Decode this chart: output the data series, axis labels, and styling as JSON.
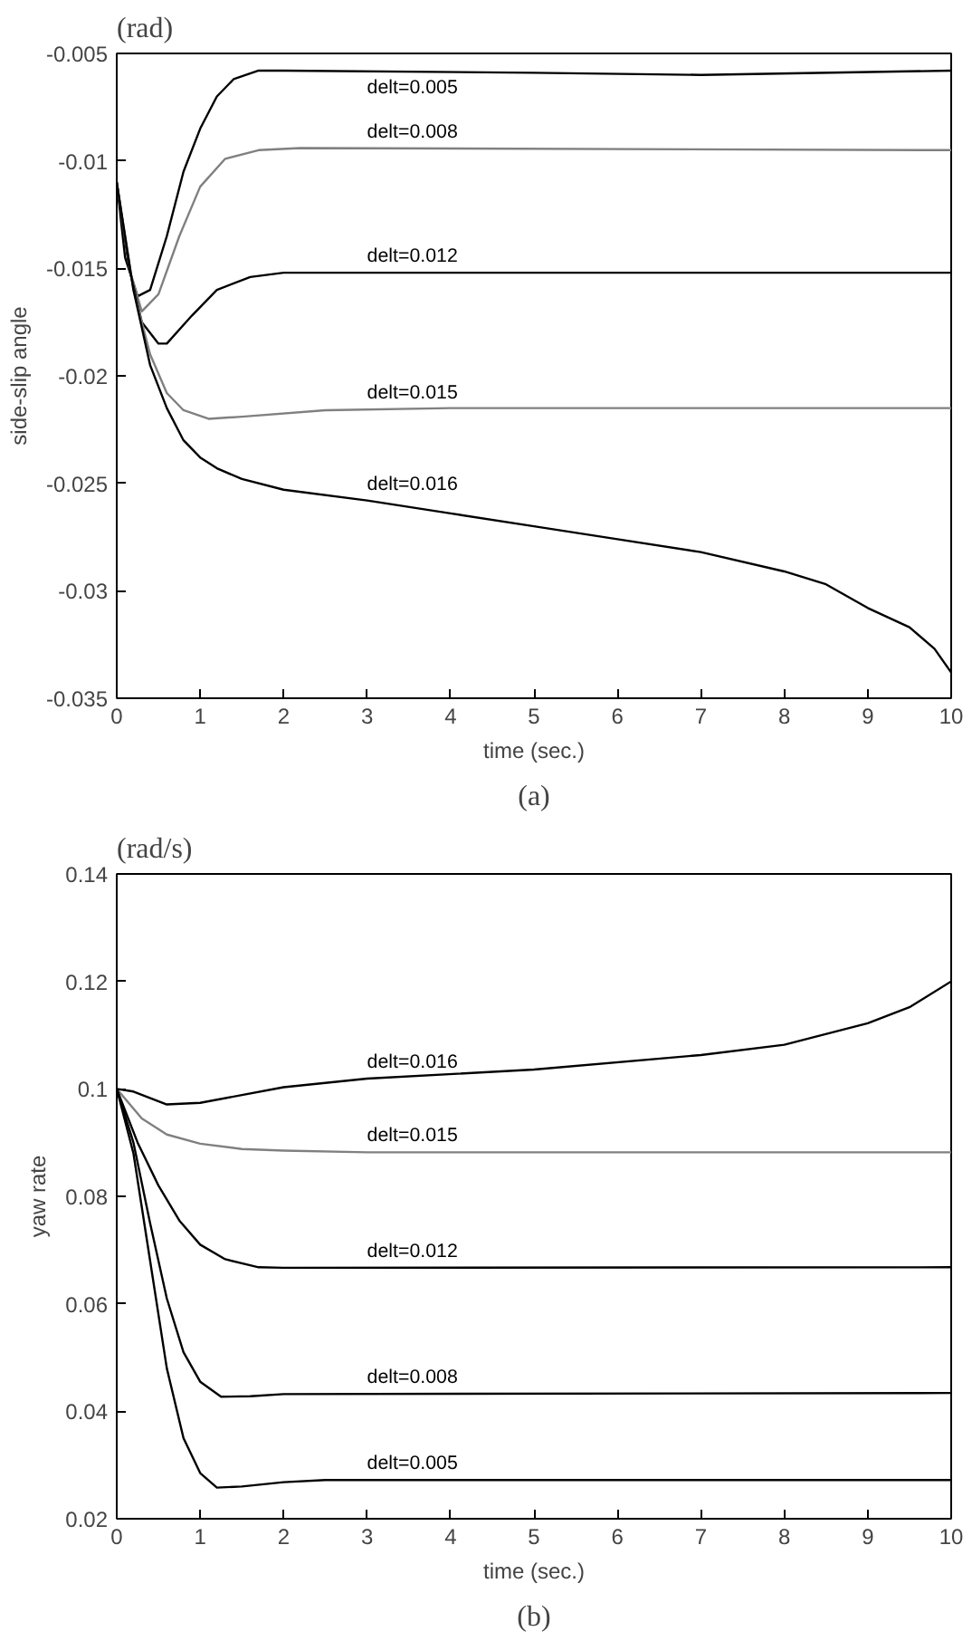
{
  "chart_data": [
    {
      "type": "line",
      "subtitle": "(rad)",
      "xlabel": "time (sec.)",
      "ylabel": "side-slip angle",
      "annotations": [
        "(a)"
      ],
      "xlim": [
        0,
        10
      ],
      "ylim": [
        -0.035,
        -0.005
      ],
      "xticks": [
        0,
        1,
        2,
        3,
        4,
        5,
        6,
        7,
        8,
        9,
        10
      ],
      "yticks": [
        -0.035,
        -0.03,
        -0.025,
        -0.02,
        -0.015,
        -0.01,
        -0.005
      ],
      "grid": false,
      "legend": false,
      "line_style": "solid",
      "series": [
        {
          "name": "delt=0.005",
          "color": "#000000",
          "x": [
            0,
            0.1,
            0.25,
            0.4,
            0.6,
            0.8,
            1.0,
            1.2,
            1.4,
            1.7,
            2,
            5,
            7,
            10
          ],
          "values": [
            -0.011,
            -0.0145,
            -0.0163,
            -0.016,
            -0.0135,
            -0.0105,
            -0.0085,
            -0.007,
            -0.0062,
            -0.0058,
            -0.0058,
            -0.0059,
            -0.006,
            -0.0058
          ]
        },
        {
          "name": "delt=0.008",
          "color": "#808080",
          "x": [
            0,
            0.15,
            0.3,
            0.5,
            0.75,
            1.0,
            1.3,
            1.7,
            2.2,
            10
          ],
          "values": [
            -0.011,
            -0.015,
            -0.017,
            -0.0162,
            -0.0135,
            -0.0112,
            -0.0099,
            -0.0095,
            -0.0094,
            -0.0095
          ]
        },
        {
          "name": "delt=0.012",
          "color": "#000000",
          "x": [
            0,
            0.15,
            0.3,
            0.5,
            0.6,
            0.9,
            1.2,
            1.6,
            2,
            10
          ],
          "values": [
            -0.011,
            -0.015,
            -0.0175,
            -0.0185,
            -0.0185,
            -0.0172,
            -0.016,
            -0.0154,
            -0.0152,
            -0.0152
          ]
        },
        {
          "name": "delt=0.015",
          "color": "#808080",
          "x": [
            0,
            0.2,
            0.4,
            0.6,
            0.8,
            1.1,
            1.5,
            2.5,
            4,
            10
          ],
          "values": [
            -0.011,
            -0.016,
            -0.019,
            -0.0208,
            -0.0216,
            -0.022,
            -0.0219,
            -0.0216,
            -0.0215,
            -0.0215
          ]
        },
        {
          "name": "delt=0.016",
          "color": "#000000",
          "x": [
            0,
            0.2,
            0.4,
            0.6,
            0.8,
            1,
            1.2,
            1.5,
            2,
            3,
            4,
            5,
            6,
            7,
            8,
            8.5,
            9,
            9.5,
            9.8,
            10
          ],
          "values": [
            -0.011,
            -0.016,
            -0.0195,
            -0.0215,
            -0.023,
            -0.0238,
            -0.0243,
            -0.0248,
            -0.0253,
            -0.0258,
            -0.0264,
            -0.027,
            -0.0276,
            -0.0282,
            -0.0291,
            -0.0297,
            -0.0308,
            -0.0317,
            -0.0327,
            -0.0338
          ]
        }
      ]
    },
    {
      "type": "line",
      "subtitle": "(rad/s)",
      "xlabel": "time (sec.)",
      "ylabel": "yaw rate",
      "annotations": [
        "(b)"
      ],
      "xlim": [
        0,
        10
      ],
      "ylim": [
        0.02,
        0.14
      ],
      "xticks": [
        0,
        1,
        2,
        3,
        4,
        5,
        6,
        7,
        8,
        9,
        10
      ],
      "yticks": [
        0.02,
        0.04,
        0.06,
        0.08,
        0.1,
        0.12,
        0.14
      ],
      "grid": false,
      "legend": false,
      "line_style": "solid",
      "series": [
        {
          "name": "delt=0.016",
          "color": "#000000",
          "x": [
            0,
            0.2,
            0.6,
            1,
            2,
            3,
            5,
            7,
            8,
            9,
            9.5,
            10
          ],
          "values": [
            0.1,
            0.0995,
            0.0971,
            0.0974,
            0.1003,
            0.1019,
            0.1036,
            0.1063,
            0.1082,
            0.1122,
            0.1152,
            0.12
          ]
        },
        {
          "name": "delt=0.015",
          "color": "#808080",
          "x": [
            0,
            0.3,
            0.6,
            1,
            1.5,
            2,
            3,
            10
          ],
          "values": [
            0.1,
            0.0945,
            0.0915,
            0.0898,
            0.0888,
            0.0885,
            0.0882,
            0.0882
          ]
        },
        {
          "name": "delt=0.012",
          "color": "#000000",
          "x": [
            0,
            0.25,
            0.5,
            0.75,
            1,
            1.3,
            1.7,
            2,
            10
          ],
          "values": [
            0.1,
            0.09,
            0.082,
            0.0755,
            0.071,
            0.0683,
            0.0668,
            0.0667,
            0.0668
          ]
        },
        {
          "name": "delt=0.008",
          "color": "#000000",
          "x": [
            0,
            0.2,
            0.4,
            0.6,
            0.8,
            1,
            1.25,
            1.6,
            2,
            10
          ],
          "values": [
            0.1,
            0.09,
            0.075,
            0.061,
            0.051,
            0.0455,
            0.0427,
            0.0428,
            0.0432,
            0.0434
          ]
        },
        {
          "name": "delt=0.005",
          "color": "#000000",
          "x": [
            0,
            0.2,
            0.4,
            0.6,
            0.8,
            1,
            1.2,
            1.5,
            2,
            2.5,
            10
          ],
          "values": [
            0.1,
            0.088,
            0.068,
            0.048,
            0.035,
            0.0285,
            0.0258,
            0.026,
            0.0268,
            0.0272,
            0.0272
          ]
        }
      ]
    }
  ]
}
